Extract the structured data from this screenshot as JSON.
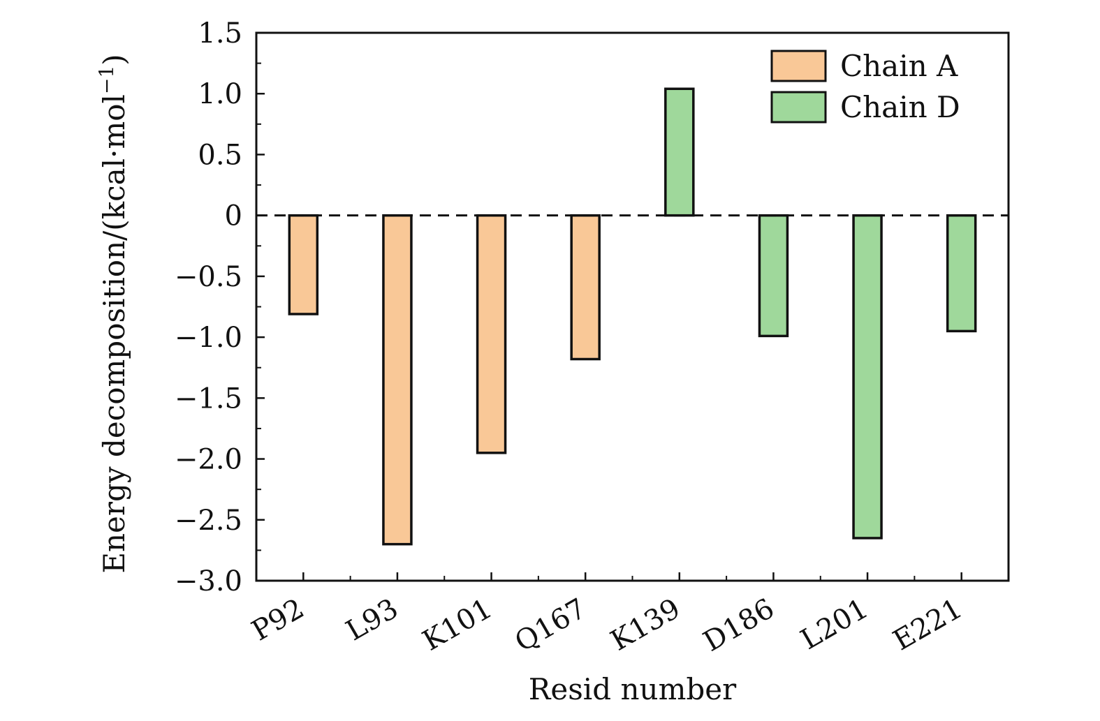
{
  "chart_data": {
    "type": "bar",
    "title": "",
    "xlabel": "Resid number",
    "ylabel": "Energy decomposition/(kcal·mol",
    "ylabel_superscript": "−1",
    "ylabel_close": ")",
    "ylim": [
      -3.0,
      1.5
    ],
    "yticks": [
      "1.5",
      "1.0",
      "0.5",
      "0",
      "−0.5",
      "−1.0",
      "−1.5",
      "−2.0",
      "−2.5",
      "−3.0"
    ],
    "ytick_values": [
      1.5,
      1.0,
      0.5,
      0,
      -0.5,
      -1.0,
      -1.5,
      -2.0,
      -2.5,
      -3.0
    ],
    "categories": [
      "P92",
      "L93",
      "K101",
      "Q167",
      "K139",
      "D186",
      "L201",
      "E221"
    ],
    "values": [
      -0.81,
      -2.7,
      -1.95,
      -1.18,
      1.04,
      -0.99,
      -2.65,
      -0.95
    ],
    "series_of_category": [
      "Chain A",
      "Chain A",
      "Chain A",
      "Chain A",
      "Chain D",
      "Chain D",
      "Chain D",
      "Chain D"
    ],
    "series": [
      {
        "name": "Chain A",
        "color": "#f9c897"
      },
      {
        "name": "Chain D",
        "color": "#9fd89b"
      }
    ],
    "reference_line": {
      "y": 0,
      "style": "dashed"
    },
    "legend_position": "top-right",
    "grid": false
  }
}
